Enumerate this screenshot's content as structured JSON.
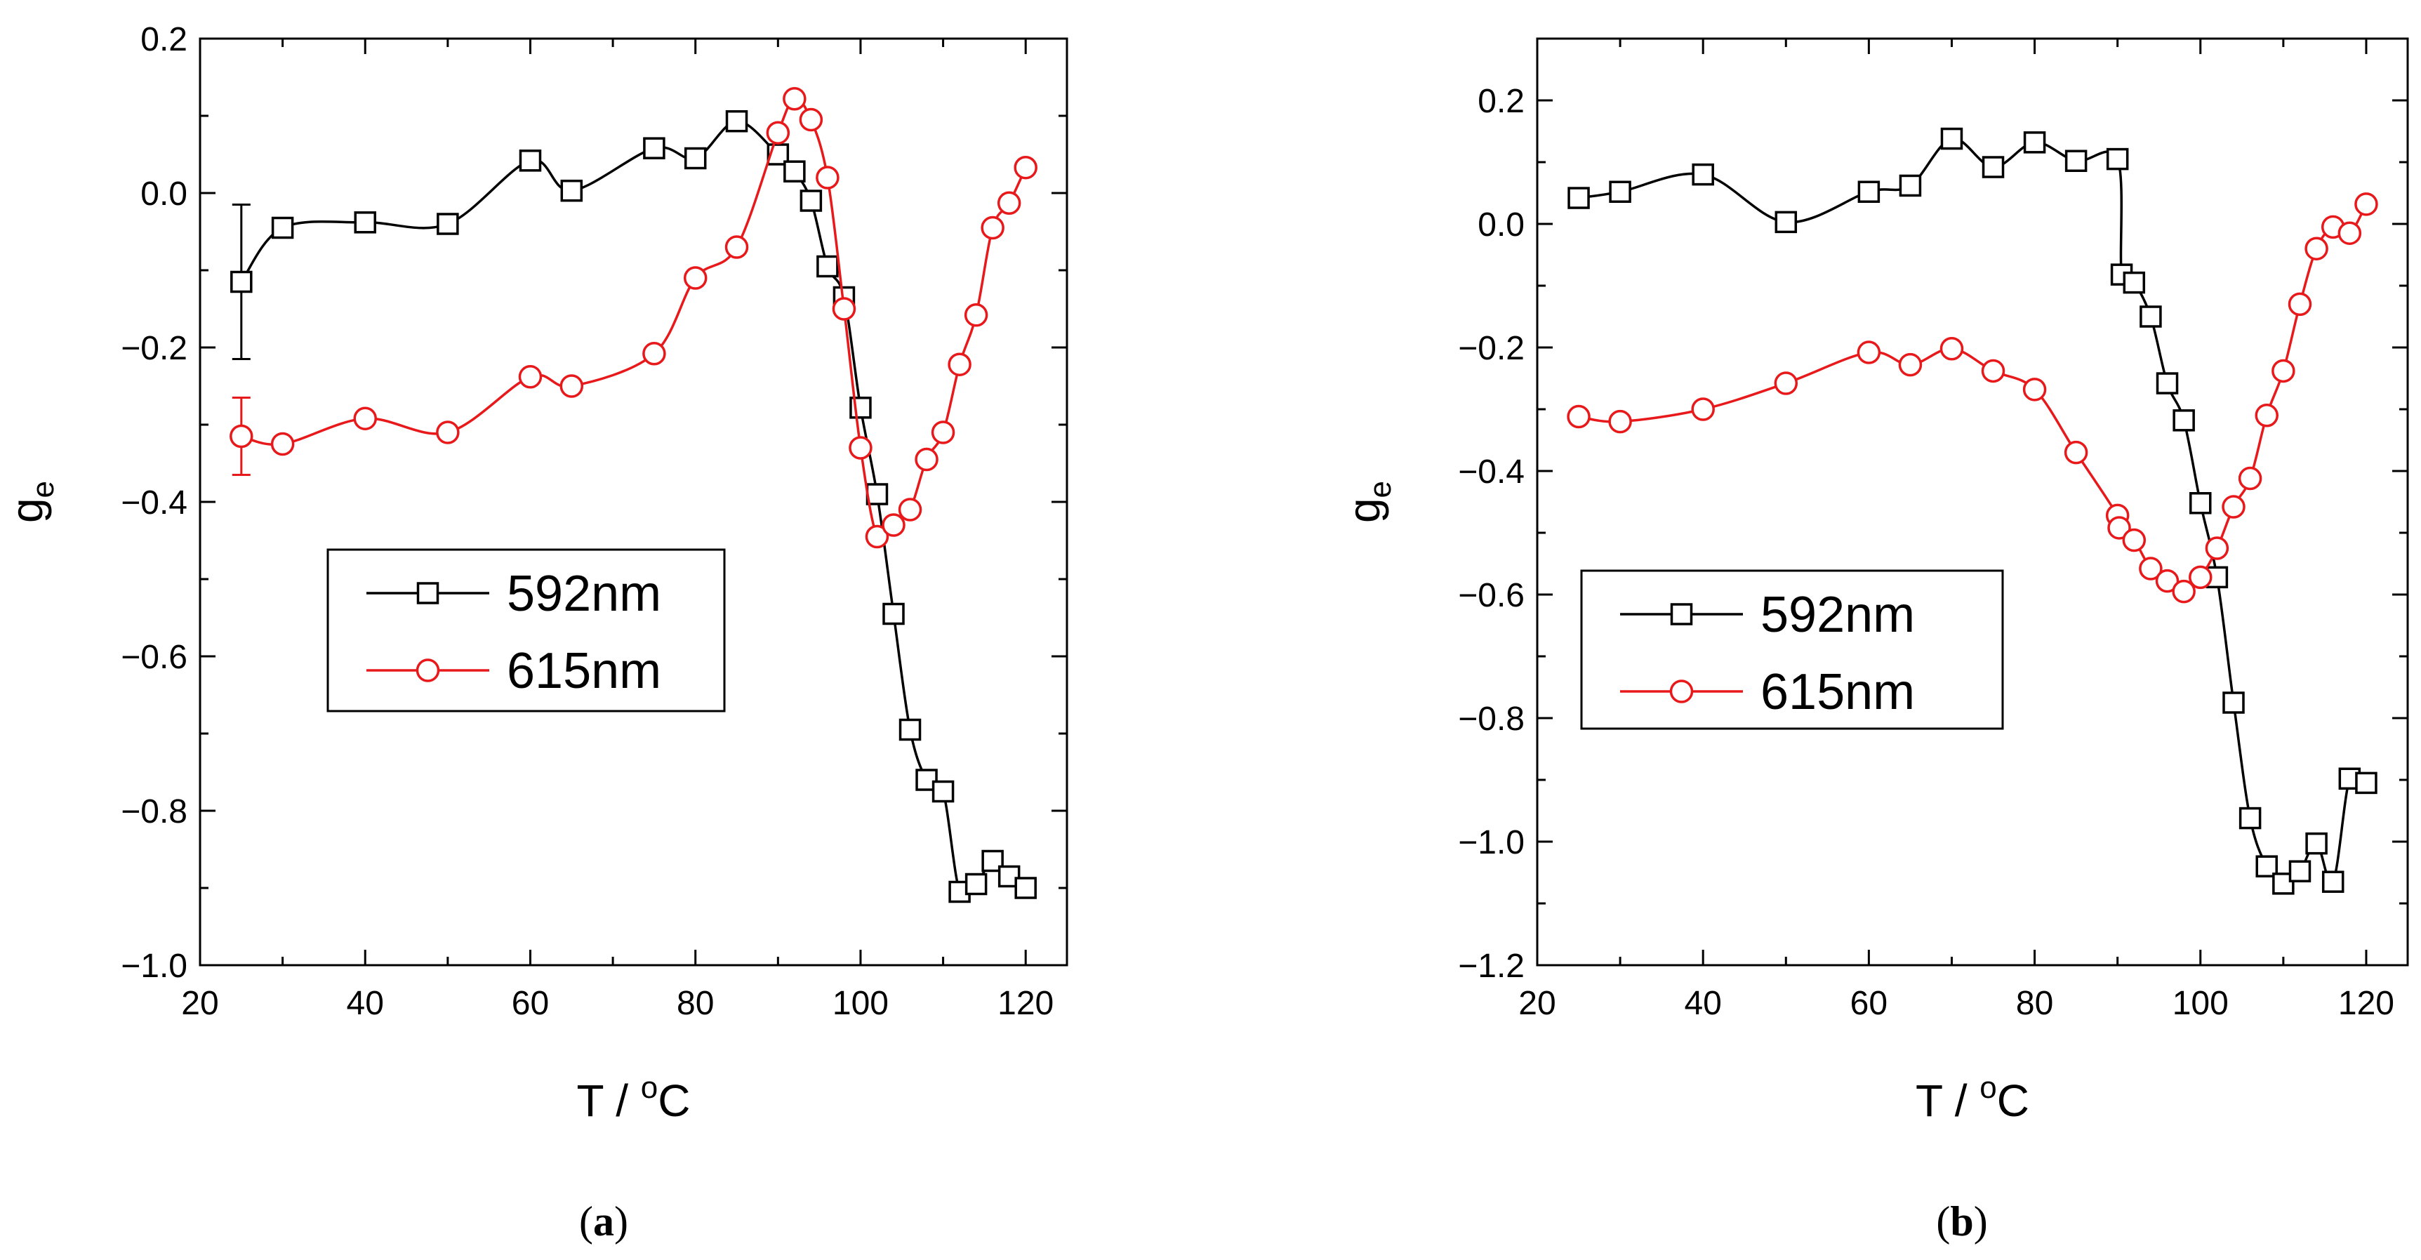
{
  "colors": {
    "series_592": "#000000",
    "series_615": "#e8191b",
    "axis": "#000000"
  },
  "chart_data": [
    {
      "type": "line",
      "panel_label": "a",
      "xlabel": "T / °C",
      "ylabel": "g_e",
      "xlabel_parts": {
        "main": "T / ",
        "sup": "o",
        "unit": "C"
      },
      "ylabel_parts": {
        "main": "g",
        "sub": "e"
      },
      "xlim": [
        20,
        125
      ],
      "ylim": [
        -1.0,
        0.2
      ],
      "xticks": [
        20,
        40,
        60,
        80,
        100,
        120
      ],
      "yticks": [
        -1.0,
        -0.8,
        -0.6,
        -0.4,
        -0.2,
        0.0,
        0.2
      ],
      "xtick_labels": [
        "20",
        "40",
        "60",
        "80",
        "100",
        "120"
      ],
      "ytick_labels": [
        "−1.0",
        "−0.8",
        "−0.6",
        "−0.4",
        "−0.2",
        "0.0",
        "0.2"
      ],
      "legend_position": "center-left",
      "series": [
        {
          "name": "592nm",
          "marker": "square",
          "color": "#000000",
          "x": [
            25,
            30,
            40,
            50,
            60,
            65,
            75,
            80,
            85,
            90,
            92,
            94,
            96,
            98,
            100,
            102,
            104,
            106,
            108,
            110,
            112,
            114,
            116,
            118,
            120
          ],
          "y": [
            -0.115,
            -0.045,
            -0.038,
            -0.04,
            0.042,
            0.003,
            0.058,
            0.045,
            0.093,
            0.05,
            0.028,
            -0.01,
            -0.095,
            -0.135,
            -0.278,
            -0.39,
            -0.545,
            -0.695,
            -0.76,
            -0.775,
            -0.905,
            -0.895,
            -0.865,
            -0.885,
            -0.9
          ],
          "error_bars": [
            {
              "x": 25,
              "y": -0.115,
              "err": 0.1
            }
          ]
        },
        {
          "name": "615nm",
          "marker": "circle",
          "color": "#e8191b",
          "x": [
            25,
            30,
            40,
            50,
            60,
            65,
            75,
            80,
            85,
            90,
            92,
            94,
            96,
            98,
            100,
            102,
            104,
            106,
            108,
            110,
            112,
            114,
            116,
            118,
            120
          ],
          "y": [
            -0.315,
            -0.325,
            -0.292,
            -0.31,
            -0.238,
            -0.25,
            -0.208,
            -0.11,
            -0.07,
            0.078,
            0.122,
            0.095,
            0.02,
            -0.15,
            -0.33,
            -0.445,
            -0.43,
            -0.41,
            -0.345,
            -0.31,
            -0.222,
            -0.158,
            -0.045,
            -0.013,
            0.033
          ],
          "error_bars": [
            {
              "x": 25,
              "y": -0.315,
              "err": 0.05
            }
          ]
        }
      ]
    },
    {
      "type": "line",
      "panel_label": "b",
      "xlabel": "T / °C",
      "ylabel": "g_e",
      "xlabel_parts": {
        "main": "T / ",
        "sup": "o",
        "unit": "C"
      },
      "ylabel_parts": {
        "main": "g",
        "sub": "e"
      },
      "xlim": [
        20,
        125
      ],
      "ylim": [
        -1.2,
        0.3
      ],
      "xticks": [
        20,
        40,
        60,
        80,
        100,
        120
      ],
      "yticks": [
        -1.2,
        -1.0,
        -0.8,
        -0.6,
        -0.4,
        -0.2,
        0.0,
        0.2
      ],
      "xtick_labels": [
        "20",
        "40",
        "60",
        "80",
        "100",
        "120"
      ],
      "ytick_labels": [
        "−1.2",
        "−1.0",
        "−0.8",
        "−0.6",
        "−0.4",
        "−0.2",
        "0.0",
        "0.2"
      ],
      "legend_position": "center-left",
      "series": [
        {
          "name": "592nm",
          "marker": "square",
          "color": "#000000",
          "x": [
            25,
            30,
            40,
            50,
            60,
            65,
            70,
            75,
            80,
            85,
            90,
            90.5,
            92,
            94,
            96,
            98,
            100,
            102,
            104,
            106,
            108,
            110,
            112,
            114,
            116,
            118,
            120
          ],
          "y": [
            0.042,
            0.052,
            0.08,
            0.003,
            0.052,
            0.062,
            0.138,
            0.092,
            0.132,
            0.102,
            0.105,
            -0.082,
            -0.095,
            -0.15,
            -0.258,
            -0.318,
            -0.452,
            -0.572,
            -0.775,
            -0.962,
            -1.04,
            -1.068,
            -1.048,
            -1.003,
            -1.065,
            -0.898,
            -0.905
          ]
        },
        {
          "name": "615nm",
          "marker": "circle",
          "color": "#e8191b",
          "x": [
            25,
            30,
            40,
            50,
            60,
            65,
            70,
            75,
            80,
            85,
            90,
            90.2,
            92,
            94,
            96,
            98,
            100,
            102,
            104,
            106,
            108,
            110,
            112,
            114,
            116,
            118,
            120
          ],
          "y": [
            -0.312,
            -0.32,
            -0.3,
            -0.258,
            -0.208,
            -0.228,
            -0.202,
            -0.238,
            -0.268,
            -0.37,
            -0.472,
            -0.492,
            -0.512,
            -0.558,
            -0.578,
            -0.595,
            -0.572,
            -0.525,
            -0.458,
            -0.412,
            -0.31,
            -0.238,
            -0.13,
            -0.04,
            -0.005,
            -0.015,
            0.032
          ]
        }
      ]
    }
  ]
}
